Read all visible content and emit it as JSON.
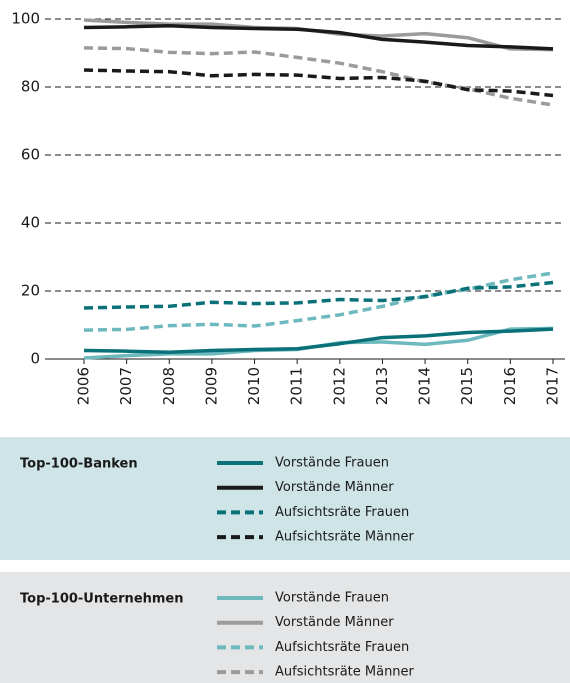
{
  "chart_data": {
    "type": "line",
    "categories": [
      "2006",
      "2007",
      "2008",
      "2009",
      "2010",
      "2011",
      "2012",
      "2013",
      "2014",
      "2015",
      "2016",
      "2017"
    ],
    "ylim": [
      0,
      100
    ],
    "yticks": [
      0,
      20,
      40,
      60,
      80,
      100
    ],
    "grid": true,
    "groups": [
      {
        "title": "Top-100-Banken",
        "background": "#cfe4e7",
        "series": [
          {
            "name": "Vorstände Frauen",
            "color": "#0b7179",
            "dash": false,
            "values": [
              2.5,
              2.3,
              2,
              2.5,
              2.8,
              3,
              4.5,
              6.3,
              6.8,
              7.8,
              8.2,
              8.8
            ]
          },
          {
            "name": "Vorstände Männer",
            "color": "#1a1a1a",
            "dash": false,
            "values": [
              97.5,
              97.7,
              98,
              97.5,
              97.2,
              97,
              96,
              94,
              93.2,
              92.2,
              91.8,
              91.2
            ]
          },
          {
            "name": "Aufsichtsräte Frauen",
            "color": "#0b7179",
            "dash": true,
            "values": [
              15,
              15.3,
              15.5,
              16.7,
              16.3,
              16.5,
              17.5,
              17.2,
              18.3,
              20.8,
              21.2,
              22.5
            ]
          },
          {
            "name": "Aufsichtsräte Männer",
            "color": "#1a1a1a",
            "dash": true,
            "values": [
              85,
              84.7,
              84.5,
              83.3,
              83.7,
              83.5,
              82.5,
              82.8,
              81.7,
              79.2,
              78.8,
              77.5
            ]
          }
        ]
      },
      {
        "title": "Top-100-Unternehmen",
        "background": "#e4e5e6",
        "series": [
          {
            "name": "Vorstände Frauen",
            "color": "#6db9be",
            "dash": false,
            "values": [
              0.3,
              1,
              1.5,
              1.5,
              2.5,
              2.8,
              4.8,
              5,
              4.3,
              5.5,
              8.8,
              9
            ]
          },
          {
            "name": "Vorstände Männer",
            "color": "#9b9b9b",
            "dash": false,
            "values": [
              99.7,
              99,
              98.5,
              98.5,
              97.5,
              97.2,
              95.5,
              95,
              95.7,
              94.5,
              91.2,
              91
            ]
          },
          {
            "name": "Aufsichtsräte Frauen",
            "color": "#6db9be",
            "dash": true,
            "values": [
              8.5,
              8.7,
              9.8,
              10.2,
              9.7,
              11.3,
              13,
              15.5,
              18.5,
              20.5,
              23.3,
              25.3
            ]
          },
          {
            "name": "Aufsichtsräte Männer",
            "color": "#9b9b9b",
            "dash": true,
            "values": [
              91.5,
              91.3,
              90.2,
              89.8,
              90.3,
              88.7,
              87,
              84.5,
              81.5,
              79.5,
              76.7,
              74.7
            ]
          }
        ]
      }
    ]
  }
}
